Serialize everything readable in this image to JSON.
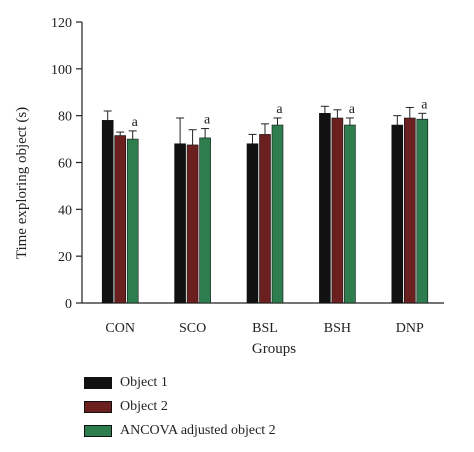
{
  "chart_data": {
    "type": "bar",
    "title": "",
    "xlabel": "Groups",
    "ylabel": "Time exploring object (s)",
    "ylim": [
      0,
      120
    ],
    "yticks": [
      0,
      20,
      40,
      60,
      80,
      100,
      120
    ],
    "categories": [
      "CON",
      "SCO",
      "BSL",
      "BSH",
      "DNP"
    ],
    "grid": false,
    "legend_position": "bottom-left",
    "series": [
      {
        "name": "Object 1",
        "color": "#111111",
        "values": [
          78,
          68,
          68,
          81,
          76
        ],
        "errors": [
          4,
          11,
          4,
          3,
          4
        ]
      },
      {
        "name": "Object 2",
        "color": "#6b1f1f",
        "values": [
          71.5,
          67.5,
          72,
          79,
          79
        ],
        "errors": [
          1.5,
          6.5,
          4.5,
          3.5,
          4.5
        ]
      },
      {
        "name": "ANCOVA adjusted object 2",
        "color": "#2e7d4f",
        "values": [
          70,
          70.5,
          76,
          76,
          78.5
        ],
        "errors": [
          3.5,
          4,
          3,
          3,
          2.5
        ]
      }
    ],
    "annotations": [
      {
        "category": "CON",
        "series": "ANCOVA adjusted object 2",
        "text": "a"
      },
      {
        "category": "SCO",
        "series": "ANCOVA adjusted object 2",
        "text": "a"
      },
      {
        "category": "BSL",
        "series": "ANCOVA adjusted object 2",
        "text": "a"
      },
      {
        "category": "BSH",
        "series": "ANCOVA adjusted object 2",
        "text": "a"
      },
      {
        "category": "DNP",
        "series": "ANCOVA adjusted object 2",
        "text": "a"
      }
    ]
  }
}
